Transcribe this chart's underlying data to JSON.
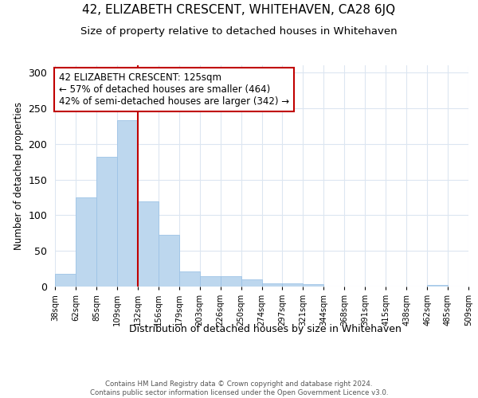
{
  "title": "42, ELIZABETH CRESCENT, WHITEHAVEN, CA28 6JQ",
  "subtitle": "Size of property relative to detached houses in Whitehaven",
  "xlabel": "Distribution of detached houses by size in Whitehaven",
  "ylabel": "Number of detached properties",
  "footer_line1": "Contains HM Land Registry data © Crown copyright and database right 2024.",
  "footer_line2": "Contains public sector information licensed under the Open Government Licence v3.0.",
  "bin_labels": [
    "38sqm",
    "62sqm",
    "85sqm",
    "109sqm",
    "132sqm",
    "156sqm",
    "179sqm",
    "203sqm",
    "226sqm",
    "250sqm",
    "274sqm",
    "297sqm",
    "321sqm",
    "344sqm",
    "368sqm",
    "391sqm",
    "415sqm",
    "438sqm",
    "462sqm",
    "485sqm",
    "509sqm"
  ],
  "bar_values": [
    18,
    125,
    182,
    234,
    120,
    73,
    21,
    14,
    14,
    10,
    5,
    4,
    3,
    0,
    0,
    0,
    0,
    0,
    2,
    0
  ],
  "bar_color": "#bdd7ee",
  "bar_edgecolor": "#9dc3e6",
  "property_bin_index": 4,
  "vline_color": "#c00000",
  "annotation_text": "42 ELIZABETH CRESCENT: 125sqm\n← 57% of detached houses are smaller (464)\n42% of semi-detached houses are larger (342) →",
  "ylim": [
    0,
    310
  ],
  "yticks": [
    0,
    50,
    100,
    150,
    200,
    250,
    300
  ],
  "bg_color": "#ffffff",
  "plot_bg_color": "#ffffff",
  "grid_color": "#dce6f1",
  "title_fontsize": 11,
  "subtitle_fontsize": 9.5,
  "annotation_fontsize": 8.5
}
